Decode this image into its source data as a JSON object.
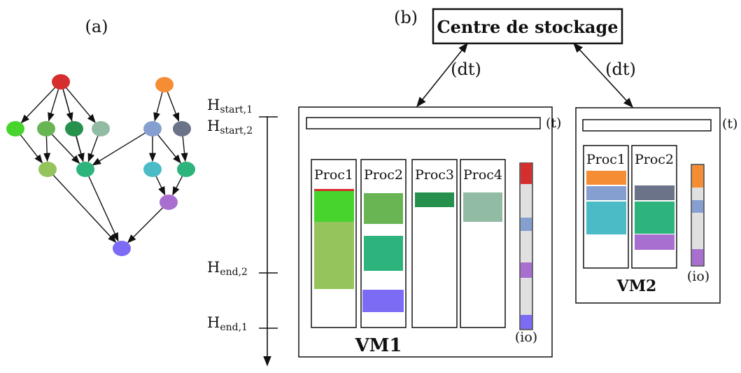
{
  "panel_a": {
    "label": "(a)",
    "nodes": [
      {
        "id": "n1",
        "color": "#d62e2e"
      },
      {
        "id": "n2",
        "color": "#f58d35"
      },
      {
        "id": "n3",
        "color": "#47d42c"
      },
      {
        "id": "n4",
        "color": "#69b554"
      },
      {
        "id": "n5",
        "color": "#26914d"
      },
      {
        "id": "n6",
        "color": "#92bba4"
      },
      {
        "id": "n7",
        "color": "#849fd0"
      },
      {
        "id": "n8",
        "color": "#6b7389"
      },
      {
        "id": "n9",
        "color": "#94c45b"
      },
      {
        "id": "n10",
        "color": "#2cb47c"
      },
      {
        "id": "n11",
        "color": "#4bbcc6"
      },
      {
        "id": "n12",
        "color": "#2cb47c"
      },
      {
        "id": "n13",
        "color": "#a86fd1"
      },
      {
        "id": "n14",
        "color": "#7b6bf5"
      }
    ],
    "edges": [
      [
        "n1",
        "n3"
      ],
      [
        "n1",
        "n4"
      ],
      [
        "n1",
        "n5"
      ],
      [
        "n1",
        "n6"
      ],
      [
        "n1",
        "n10"
      ],
      [
        "n2",
        "n7"
      ],
      [
        "n2",
        "n8"
      ],
      [
        "n3",
        "n9"
      ],
      [
        "n4",
        "n9"
      ],
      [
        "n4",
        "n10"
      ],
      [
        "n5",
        "n10"
      ],
      [
        "n6",
        "n10"
      ],
      [
        "n7",
        "n10"
      ],
      [
        "n7",
        "n11"
      ],
      [
        "n7",
        "n12"
      ],
      [
        "n8",
        "n12"
      ],
      [
        "n9",
        "n14"
      ],
      [
        "n10",
        "n14"
      ],
      [
        "n11",
        "n13"
      ],
      [
        "n12",
        "n13"
      ],
      [
        "n13",
        "n14"
      ]
    ]
  },
  "panel_b": {
    "label": "(b)",
    "storage": "Centre de stockage",
    "dt_label": "(dt)",
    "t_label": "(t)",
    "io_label": "(io)",
    "timeline": {
      "h_start_1": "H",
      "h_start_1_sub": "start,1",
      "h_start_2": "H",
      "h_start_2_sub": "start,2",
      "h_end_2": "H",
      "h_end_2_sub": "end,2",
      "h_end_1": "H",
      "h_end_1_sub": "end,1"
    },
    "vms": [
      {
        "name": "VM1",
        "procs": [
          {
            "name": "Proc1",
            "tasks": [
              "#d62e2e",
              "#47d42c",
              "#94c45b"
            ]
          },
          {
            "name": "Proc2",
            "tasks": [
              "#69b554",
              "#2cb47c",
              "#7b6bf5"
            ]
          },
          {
            "name": "Proc3",
            "tasks": [
              "#26914d"
            ]
          },
          {
            "name": "Proc4",
            "tasks": [
              "#92bba4"
            ]
          }
        ],
        "io_colors": [
          "#d62e2e",
          "#849fd0",
          "#a86fd1",
          "#7b6bf5"
        ]
      },
      {
        "name": "VM2",
        "procs": [
          {
            "name": "Proc1",
            "tasks": [
              "#f58d35",
              "#849fd0",
              "#4bbcc6"
            ]
          },
          {
            "name": "Proc2",
            "tasks": [
              "#6b7389",
              "#2cb47c",
              "#a86fd1"
            ]
          }
        ],
        "io_colors": [
          "#f58d35",
          "#849fd0",
          "#a86fd1"
        ]
      }
    ]
  }
}
